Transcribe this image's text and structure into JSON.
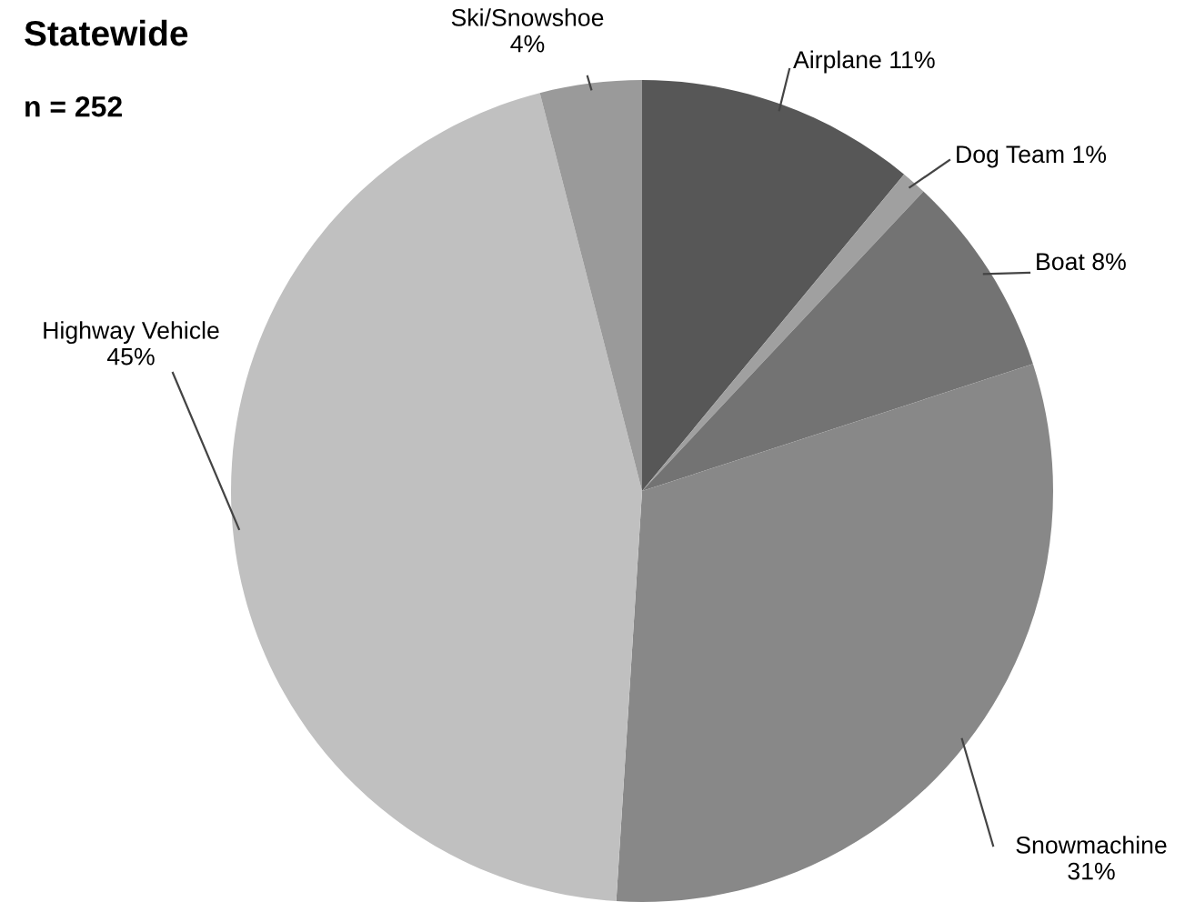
{
  "chart_data": {
    "type": "pie",
    "title": "Statewide",
    "annotations": [
      "n = 252"
    ],
    "categories": [
      "Airplane",
      "Dog Team",
      "Boat",
      "Snowmachine",
      "Highway Vehicle",
      "Ski/Snowshoe"
    ],
    "values": [
      11,
      1,
      8,
      31,
      45,
      4
    ],
    "colors": [
      "#575757",
      "#a0a0a0",
      "#737373",
      "#888888",
      "#c0c0c0",
      "#9a9a9a"
    ],
    "value_labels": [
      "11%",
      "1%",
      "8%",
      "31%",
      "45%",
      "4%"
    ]
  }
}
